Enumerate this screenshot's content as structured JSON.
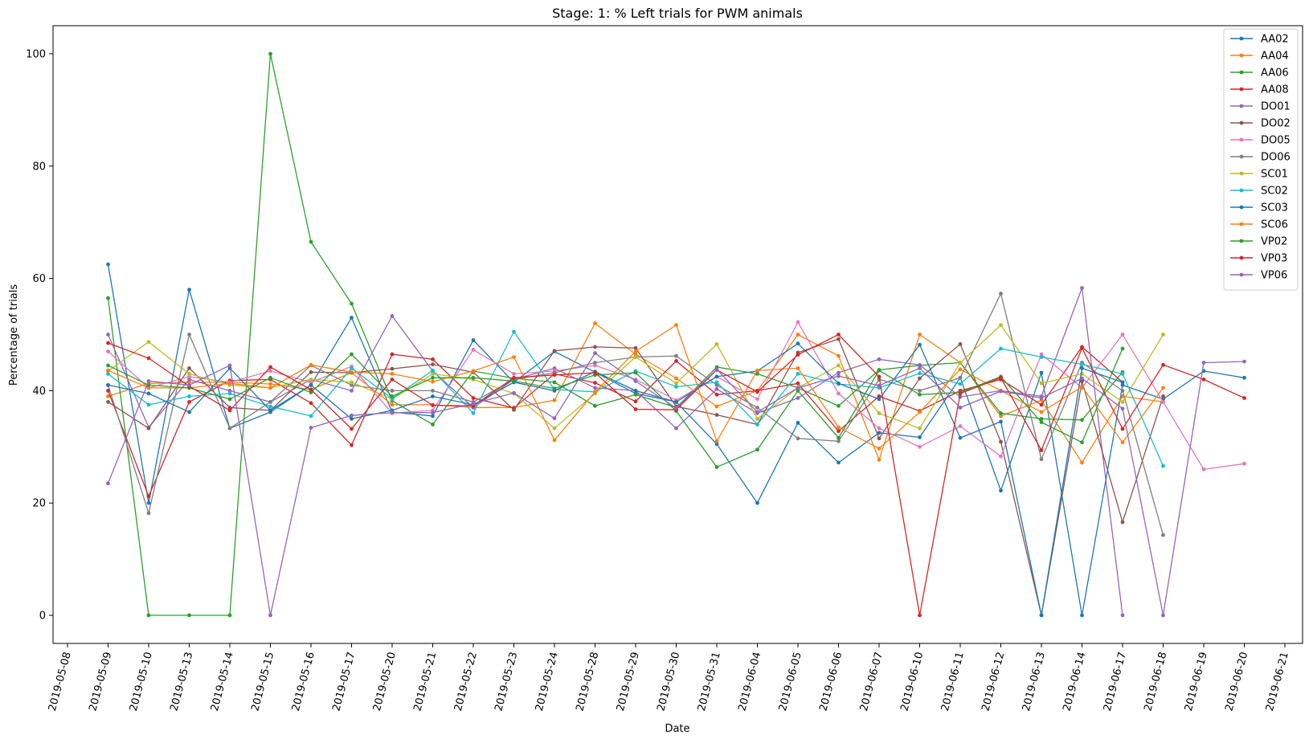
{
  "chart_data": {
    "type": "line",
    "title": "Stage: 1: % Left trials for PWM animals",
    "xlabel": "Date",
    "ylabel": "Percentage of trials",
    "x_axis_ticks": [
      "2019-05-08",
      "2019-05-09",
      "2019-05-10",
      "2019-05-13",
      "2019-05-14",
      "2019-05-15",
      "2019-05-16",
      "2019-05-17",
      "2019-05-20",
      "2019-05-21",
      "2019-05-22",
      "2019-05-23",
      "2019-05-24",
      "2019-05-28",
      "2019-05-29",
      "2019-05-30",
      "2019-05-31",
      "2019-06-04",
      "2019-06-05",
      "2019-06-06",
      "2019-06-07",
      "2019-06-10",
      "2019-06-11",
      "2019-06-12",
      "2019-06-13",
      "2019-06-14",
      "2019-06-17",
      "2019-06-18",
      "2019-06-19",
      "2019-06-20",
      "2019-06-21"
    ],
    "y_ticks": [
      0,
      20,
      40,
      60,
      80,
      100
    ],
    "ylim": [
      -5,
      105
    ],
    "legend_position": "top-right",
    "grid": false,
    "series": [
      {
        "name": "AA02",
        "color": "#1f77b4",
        "values": [
          null,
          62.5,
          20,
          58,
          33.3,
          36.2,
          41,
          53,
          36.2,
          35.5,
          49,
          41.5,
          47,
          43.3,
          39.5,
          38,
          30.5,
          20,
          34.3,
          27.2,
          32.5,
          31.7,
          42.3,
          22.2,
          43.2,
          0,
          41,
          38.5,
          43.5,
          42.3,
          null
        ]
      },
      {
        "name": "AA04",
        "color": "#ff7f0e",
        "values": [
          null,
          39,
          41.3,
          41.5,
          41.5,
          41.2,
          40.2,
          43.2,
          37.5,
          37.5,
          37,
          37,
          38.3,
          52,
          46.5,
          42.2,
          37.2,
          40,
          50,
          46.2,
          27.7,
          50,
          45,
          35.5,
          38.3,
          27.2,
          39,
          38,
          null,
          null,
          null
        ]
      },
      {
        "name": "AA06",
        "color": "#2ca02c",
        "values": [
          null,
          56.5,
          0,
          0,
          0,
          100,
          66.5,
          55.5,
          38.2,
          34,
          43.5,
          42.2,
          41.5,
          37.3,
          39.3,
          37,
          44.2,
          43,
          40.5,
          37.3,
          43.7,
          44.5,
          45,
          36,
          35,
          34.8,
          43.3,
          null,
          null,
          null,
          null
        ]
      },
      {
        "name": "AA08",
        "color": "#d62728",
        "values": [
          null,
          40,
          21.2,
          38,
          41.8,
          42,
          37.8,
          30.3,
          46.5,
          45.6,
          38.7,
          36.9,
          43,
          41.4,
          38.1,
          45.3,
          39.3,
          40,
          41.3,
          32.8,
          39,
          36.4,
          40,
          42,
          37.5,
          47.8,
          41.5,
          null,
          null,
          null,
          null
        ]
      },
      {
        "name": "DO01",
        "color": "#9467bd",
        "values": [
          null,
          50,
          33.5,
          42,
          40,
          38,
          42,
          40,
          53.3,
          43.5,
          37,
          42,
          44,
          40.5,
          40,
          33.3,
          40.3,
          36,
          38.7,
          43.2,
          45.6,
          44.6,
          38.9,
          40,
          39,
          58.3,
          0,
          null,
          null,
          null,
          null
        ]
      },
      {
        "name": "DO02",
        "color": "#8c564b",
        "values": [
          null,
          38,
          33.3,
          44,
          37,
          36.5,
          43.3,
          43.2,
          43.9,
          44.7,
          43.3,
          36.6,
          47.1,
          47.8,
          47.6,
          37.2,
          35.7,
          34,
          46.8,
          49.2,
          31.5,
          42.2,
          48.3,
          30.9,
          0,
          41.7,
          16.6,
          39,
          null,
          null,
          null
        ]
      },
      {
        "name": "DO05",
        "color": "#e377c2",
        "values": [
          null,
          47,
          40.5,
          42.5,
          41.5,
          43.5,
          41.5,
          44.3,
          36,
          36.5,
          47.3,
          43,
          43.5,
          44.5,
          42,
          38.3,
          42.5,
          38.5,
          52.2,
          39.5,
          33.3,
          30,
          33.7,
          28.3,
          46.5,
          40.5,
          50,
          38,
          26,
          27,
          null
        ]
      },
      {
        "name": "DO06",
        "color": "#7f7f7f",
        "values": [
          null,
          41,
          18.2,
          50,
          33.3,
          38,
          44.5,
          41,
          40,
          40,
          38,
          42,
          43.2,
          45,
          46,
          46.2,
          41,
          37,
          31.5,
          31,
          42,
          40,
          42.3,
          57.3,
          27.8,
          45,
          40,
          14.3,
          null,
          null,
          null
        ]
      },
      {
        "name": "SC01",
        "color": "#bcbd22",
        "values": [
          null,
          43.5,
          48.7,
          43,
          41,
          40.5,
          42,
          41.5,
          38.5,
          43,
          42,
          39.5,
          33.3,
          39.5,
          46,
          41.3,
          48.3,
          35,
          40.5,
          44.5,
          36,
          33.3,
          45,
          51.7,
          41.3,
          43,
          38,
          50,
          null,
          null,
          null
        ]
      },
      {
        "name": "SC02",
        "color": "#17becf",
        "values": [
          null,
          43,
          37.5,
          39,
          39.5,
          37.2,
          35.5,
          44,
          38.6,
          43.6,
          36,
          50.5,
          40.2,
          39.8,
          43.5,
          40.7,
          41.5,
          34,
          43,
          41.2,
          40.5,
          43.1,
          41.2,
          47.5,
          46,
          44.7,
          43,
          26.6,
          null,
          null,
          null
        ]
      },
      {
        "name": "SC03",
        "color": "#1f77b4",
        "values": [
          null,
          41,
          39.5,
          36.2,
          44,
          36.5,
          41,
          35,
          36.5,
          39,
          37.5,
          41.5,
          40,
          43.4,
          40,
          38,
          42.5,
          43.5,
          48.4,
          41.3,
          38.5,
          48.2,
          31.6,
          34.5,
          0,
          44,
          41.5,
          null,
          null,
          null,
          null
        ]
      },
      {
        "name": "SC06",
        "color": "#ff7f0e",
        "values": [
          null,
          43.6,
          40.5,
          40.5,
          41.3,
          40.5,
          44.6,
          43.3,
          43,
          41.6,
          43.5,
          46,
          31.2,
          39.8,
          47,
          51.7,
          31,
          43.6,
          44,
          33.5,
          29.7,
          36.2,
          43.8,
          40,
          36.2,
          40.7,
          30.8,
          40.5,
          null,
          null,
          null
        ]
      },
      {
        "name": "VP02",
        "color": "#2ca02c",
        "values": [
          null,
          44.5,
          41,
          40.5,
          38.5,
          42.3,
          39.7,
          46.5,
          39,
          42.3,
          42.3,
          41.7,
          40.4,
          42.8,
          43.2,
          36.4,
          26.4,
          29.5,
          40,
          31.6,
          43.6,
          39.3,
          39.7,
          42.5,
          34.4,
          30.8,
          47.5,
          null,
          null,
          null,
          null
        ]
      },
      {
        "name": "VP03",
        "color": "#d62728",
        "values": [
          null,
          48.5,
          45.8,
          40.8,
          36.5,
          44.2,
          40.2,
          33.2,
          42,
          37.4,
          37.3,
          42.3,
          42.8,
          43.2,
          36.7,
          36.6,
          43.7,
          39.8,
          46.4,
          50,
          42.5,
          0,
          39.5,
          42.3,
          29.4,
          47.6,
          33.2,
          44.6,
          42,
          38.7,
          null
        ]
      },
      {
        "name": "VP06",
        "color": "#9467bd",
        "values": [
          null,
          23.5,
          41.7,
          41,
          44.5,
          0,
          33.4,
          35.6,
          36.1,
          36.1,
          37.7,
          39.6,
          35.1,
          46.7,
          41.7,
          36.9,
          43.8,
          36.2,
          40.5,
          42.6,
          40.9,
          44,
          37,
          39.9,
          38.7,
          42.2,
          36.8,
          0,
          45,
          45.2,
          null
        ]
      }
    ]
  }
}
